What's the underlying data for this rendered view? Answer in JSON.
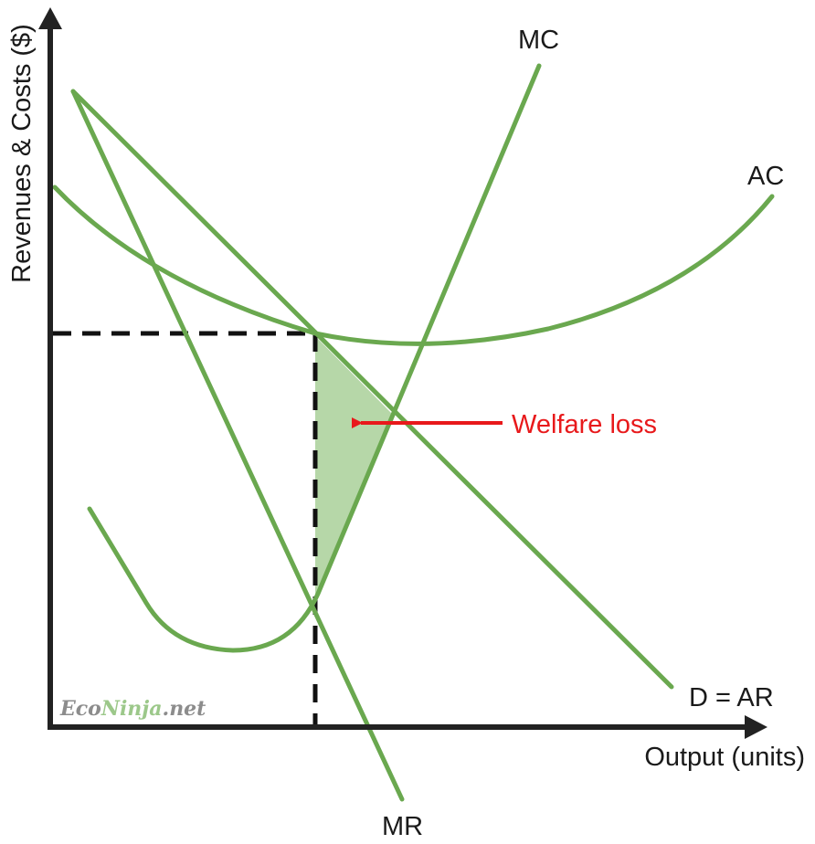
{
  "diagram": {
    "y_axis_label": "Revenues & Costs ($)",
    "x_axis_label": "Output (units)",
    "curves": {
      "mc": "MC",
      "ac": "AC",
      "demand": "D = AR",
      "mr": "MR"
    },
    "annotation": "Welfare loss",
    "watermark": {
      "part1": "Eco",
      "part2": "Ninja",
      "part3": ".net"
    },
    "colors": {
      "curve": "#6aa84f",
      "welfare_fill": "#b6d7a8",
      "annotation": "#e8191b",
      "axis": "#222222"
    }
  }
}
